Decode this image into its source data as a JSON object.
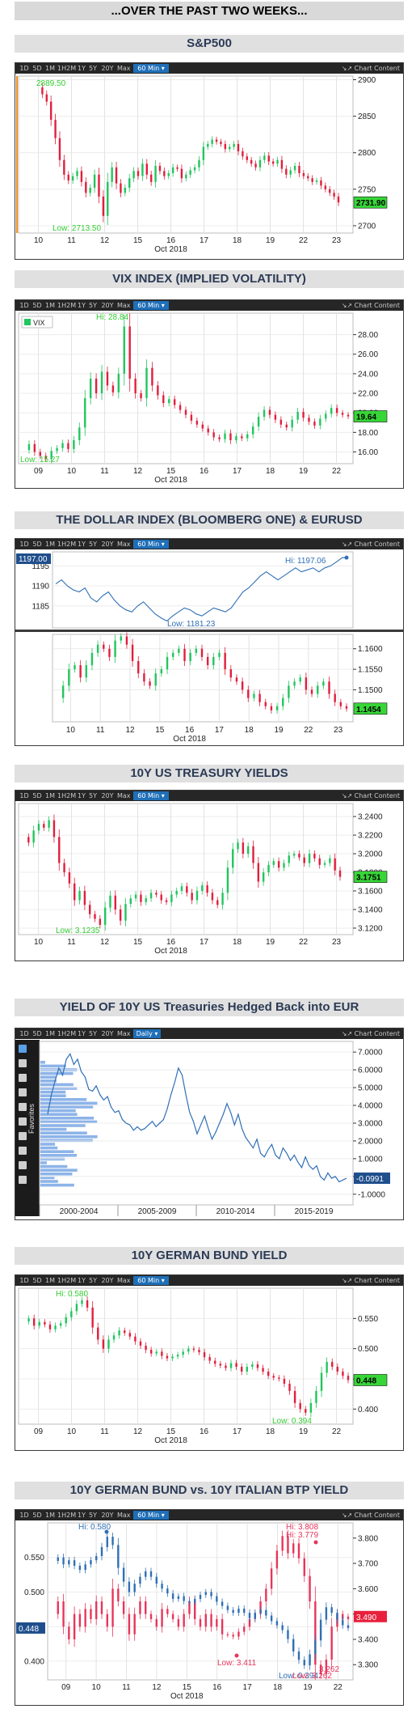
{
  "page_title": "...OVER THE PAST TWO WEEKS...",
  "toolbar": {
    "intraday_buttons": [
      "1D",
      "5D",
      "1M",
      "1H2M",
      "1Y",
      "5Y",
      "20Y",
      "Max"
    ],
    "interval": "60 Min ▾",
    "daily_interval": "Daily ▾",
    "chart_content": "Chart Content"
  },
  "charts": [
    {
      "title": "S&P500",
      "chart_data": {
        "type": "line",
        "series": [
          {
            "values": [
              2889.5,
              2880,
              2870,
              2845,
              2820,
              2790,
              2770,
              2762,
              2768,
              2775,
              2760,
              2745,
              2752,
              2770,
              2740,
              2713.5,
              2760,
              2780,
              2758,
              2745,
              2752,
              2765,
              2775,
              2768,
              2785,
              2770,
              2760,
              2782,
              2775,
              2768,
              2772,
              2780,
              2778,
              2765,
              2770,
              2776,
              2780,
              2790,
              2808,
              2812,
              2818,
              2815,
              2812,
              2805,
              2808,
              2812,
              2802,
              2795,
              2790,
              2785,
              2780,
              2790,
              2796,
              2788,
              2785,
              2790,
              2778,
              2770,
              2776,
              2782,
              2772,
              2768,
              2765,
              2760,
              2762,
              2755,
              2750,
              2745,
              2740,
              2731.9
            ]
          }
        ],
        "x_tick_labels": [
          "10",
          "11",
          "12",
          "15",
          "16",
          "17",
          "18",
          "19",
          "22",
          "23"
        ],
        "x_axis_label": "Oct 2018",
        "ylim": [
          2690,
          2905
        ],
        "y_ticks": [
          2700,
          2750,
          2800,
          2850,
          2900
        ],
        "annotations": {
          "high": "2889.50",
          "low": "Low: 2713.50",
          "last": "2731.90"
        }
      }
    },
    {
      "title": "VIX INDEX (IMPLIED VOLATILITY)",
      "chart_data": {
        "type": "line",
        "legend": [
          "VIX"
        ],
        "series": [
          {
            "name": "VIX",
            "values": [
              16.2,
              16.8,
              16.0,
              15.6,
              15.27,
              16.1,
              16.4,
              16.9,
              16.3,
              17.2,
              18.5,
              21.5,
              23.5,
              22.0,
              24.2,
              22.8,
              22.1,
              24.0,
              28.84,
              23.5,
              22.0,
              21.5,
              24.6,
              22.8,
              21.8,
              21.0,
              21.4,
              20.8,
              20.3,
              19.8,
              19.2,
              18.8,
              18.4,
              18.0,
              17.5,
              17.3,
              17.9,
              17.2,
              17.6,
              17.4,
              17.8,
              18.6,
              19.6,
              20.3,
              19.8,
              19.3,
              18.8,
              18.5,
              19.3,
              20.1,
              19.5,
              19.1,
              18.7,
              19.4,
              19.9,
              20.5,
              20.0,
              19.8,
              19.64
            ]
          }
        ],
        "x_tick_labels": [
          "09",
          "10",
          "11",
          "12",
          "15",
          "16",
          "17",
          "18",
          "19",
          "22"
        ],
        "x_axis_label": "Oct 2018",
        "ylim": [
          14.8,
          30.2
        ],
        "y_ticks": [
          16,
          18,
          20,
          22,
          24,
          26,
          28
        ],
        "annotations": {
          "high": "Hi: 28.84",
          "low": "Low: 15.27",
          "last": "19.64"
        }
      }
    },
    {
      "title": "THE DOLLAR INDEX (BLOOMBERG ONE) & EURUSD",
      "chart_data": [
        {
          "type": "line",
          "series": [
            {
              "values": [
                1190.5,
                1191.5,
                1190,
                1189,
                1188.5,
                1189.5,
                1187,
                1186,
                1187.5,
                1188.5,
                1186.5,
                1185,
                1184,
                1183.5,
                1185,
                1186,
                1184.5,
                1183,
                1182,
                1181.23,
                1182.5,
                1183.5,
                1184.5,
                1184,
                1183,
                1182.5,
                1183.5,
                1184.5,
                1184,
                1183.5,
                1184.5,
                1186.5,
                1188.5,
                1189.5,
                1191,
                1192.5,
                1193.5,
                1192.5,
                1191.5,
                1192.5,
                1193.5,
                1194.5,
                1193.5,
                1194,
                1194.5,
                1193.5,
                1194.5,
                1195,
                1196,
                1197.06,
                1197
              ]
            }
          ],
          "ylim": [
            1179.5,
            1198.5
          ],
          "y_ticks": [
            1185,
            1190,
            1195
          ],
          "annotations": {
            "high": "Hi: 1197.06",
            "low": "Low: 1181.23",
            "last": "1197.00"
          }
        },
        {
          "type": "line",
          "series": [
            {
              "values": [
                1.148,
                1.151,
                1.155,
                1.156,
                1.153,
                1.156,
                1.159,
                1.161,
                1.16,
                1.158,
                1.162,
                1.163,
                1.161,
                1.157,
                1.154,
                1.152,
                1.151,
                1.154,
                1.155,
                1.158,
                1.159,
                1.16,
                1.157,
                1.159,
                1.16,
                1.158,
                1.156,
                1.158,
                1.159,
                1.155,
                1.153,
                1.152,
                1.15,
                1.148,
                1.149,
                1.147,
                1.146,
                1.145,
                1.146,
                1.148,
                1.151,
                1.152,
                1.153,
                1.15,
                1.149,
                1.151,
                1.152,
                1.149,
                1.147,
                1.146,
                1.1454
              ]
            }
          ],
          "x_tick_labels": [
            "10",
            "11",
            "12",
            "15",
            "16",
            "17",
            "18",
            "19",
            "22",
            "23"
          ],
          "x_axis_label": "Oct 2018",
          "ylim": [
            1.1422,
            1.1635
          ],
          "y_ticks": [
            1.15,
            1.155,
            1.16
          ],
          "y_tick_labels": [
            "1.1500",
            "1.1550",
            "1.1600"
          ],
          "annotations": {
            "last": "1.1454"
          }
        }
      ]
    },
    {
      "title": "10Y US TREASURY YIELDS",
      "chart_data": {
        "type": "line",
        "series": [
          {
            "values": [
              3.218,
              3.212,
              3.225,
              3.232,
              3.228,
              3.236,
              3.218,
              3.19,
              3.18,
              3.168,
              3.15,
              3.16,
              3.145,
              3.135,
              3.13,
              3.1235,
              3.142,
              3.155,
              3.14,
              3.128,
              3.146,
              3.152,
              3.156,
              3.148,
              3.152,
              3.158,
              3.156,
              3.15,
              3.148,
              3.156,
              3.16,
              3.165,
              3.158,
              3.15,
              3.16,
              3.166,
              3.158,
              3.15,
              3.145,
              3.158,
              3.185,
              3.205,
              3.212,
              3.2,
              3.208,
              3.19,
              3.17,
              3.18,
              3.188,
              3.192,
              3.185,
              3.19,
              3.198,
              3.2,
              3.196,
              3.19,
              3.2,
              3.195,
              3.188,
              3.19,
              3.195,
              3.182,
              3.1751
            ]
          }
        ],
        "x_tick_labels": [
          "10",
          "11",
          "12",
          "15",
          "16",
          "17",
          "18",
          "19",
          "22",
          "23"
        ],
        "x_axis_label": "Oct 2018",
        "ylim": [
          3.113,
          3.254
        ],
        "y_ticks": [
          3.12,
          3.14,
          3.16,
          3.18,
          3.2,
          3.22,
          3.24
        ],
        "y_tick_labels": [
          "3.1200",
          "3.1400",
          "3.1600",
          "3.1800",
          "3.2000",
          "3.2200",
          "3.2400"
        ],
        "annotations": {
          "low": "Low: 3.1235",
          "last": "3.1751"
        }
      }
    },
    {
      "title": "YIELD OF 10Y US Treasuries Hedged Back into EUR",
      "chart_data": {
        "type": "line",
        "series": [
          {
            "values": [
              3.5,
              4.6,
              5.4,
              6.1,
              5.7,
              6.6,
              6.9,
              6.3,
              6.6,
              5.9,
              5.6,
              4.9,
              4.8,
              5.1,
              4.6,
              4.3,
              4.5,
              3.9,
              3.6,
              3.7,
              3.2,
              3.0,
              2.9,
              2.6,
              2.8,
              2.6,
              2.7,
              2.9,
              3.1,
              2.8,
              3.0,
              3.2,
              3.8,
              4.6,
              5.3,
              6.1,
              5.7,
              4.6,
              3.6,
              3.1,
              2.4,
              2.9,
              3.4,
              2.7,
              2.1,
              2.5,
              3.0,
              3.5,
              4.1,
              3.6,
              2.9,
              3.5,
              2.7,
              2.2,
              1.9,
              1.6,
              2.1,
              1.3,
              1.1,
              1.5,
              1.8,
              1.2,
              1.0,
              1.6,
              1.3,
              0.9,
              1.2,
              0.8,
              0.5,
              1.1,
              0.6,
              0.4,
              0.6,
              0.0,
              -0.2,
              0.2,
              -0.1,
              0.0,
              -0.3,
              -0.2,
              -0.0991
            ]
          }
        ],
        "x_tick_labels": [
          "2000-2004",
          "2005-2009",
          "2010-2014",
          "2015-2019"
        ],
        "ylim": [
          -1.6,
          7.6
        ],
        "y_ticks": [
          -1,
          0,
          1,
          2,
          3,
          4,
          5,
          6,
          7
        ],
        "y_tick_labels": [
          "-1.0000",
          "",
          "1.0000",
          "2.0000",
          "3.0000",
          "4.0000",
          "5.0000",
          "6.0000",
          "7.0000"
        ],
        "side_label": "Favorites",
        "annotations": {
          "last": "-0.0991"
        }
      }
    },
    {
      "title": "10Y GERMAN BUND YIELD",
      "chart_data": {
        "type": "line",
        "series": [
          {
            "values": [
              0.545,
              0.55,
              0.538,
              0.544,
              0.54,
              0.532,
              0.538,
              0.542,
              0.552,
              0.562,
              0.574,
              0.58,
              0.568,
              0.535,
              0.515,
              0.5,
              0.515,
              0.522,
              0.53,
              0.526,
              0.52,
              0.512,
              0.505,
              0.498,
              0.492,
              0.495,
              0.488,
              0.484,
              0.487,
              0.49,
              0.495,
              0.5,
              0.498,
              0.494,
              0.486,
              0.48,
              0.475,
              0.472,
              0.468,
              0.476,
              0.47,
              0.462,
              0.47,
              0.474,
              0.468,
              0.462,
              0.455,
              0.452,
              0.45,
              0.442,
              0.43,
              0.41,
              0.4,
              0.394,
              0.41,
              0.43,
              0.46,
              0.478,
              0.47,
              0.462,
              0.455,
              0.448
            ]
          }
        ],
        "x_tick_labels": [
          "09",
          "10",
          "11",
          "12",
          "15",
          "16",
          "17",
          "18",
          "19",
          "22"
        ],
        "x_axis_label": "Oct 2018",
        "ylim": [
          0.375,
          0.6
        ],
        "y_ticks": [
          0.4,
          0.45,
          0.5,
          0.55
        ],
        "y_tick_labels": [
          "0.400",
          "0.450",
          "0.500",
          "0.550"
        ],
        "annotations": {
          "high": "Hi: 0.580",
          "low": "Low: 0.394",
          "last": "0.448"
        }
      }
    },
    {
      "title": "10Y GERMAN BUND vs. 10Y ITALIAN BTP YIELD",
      "chart_data": {
        "type": "line",
        "series": [
          {
            "values": [
              0.545,
              0.55,
              0.54,
              0.546,
              0.538,
              0.532,
              0.54,
              0.546,
              0.552,
              0.565,
              0.58,
              0.568,
              0.535,
              0.515,
              0.5,
              0.512,
              0.522,
              0.53,
              0.522,
              0.512,
              0.505,
              0.498,
              0.49,
              0.494,
              0.487,
              0.485,
              0.49,
              0.496,
              0.5,
              0.494,
              0.486,
              0.48,
              0.474,
              0.47,
              0.476,
              0.47,
              0.462,
              0.47,
              0.474,
              0.466,
              0.458,
              0.452,
              0.445,
              0.432,
              0.414,
              0.402,
              0.394,
              0.41,
              0.43,
              0.46,
              0.478,
              0.47,
              0.46,
              0.452,
              0.448
            ]
          },
          {
            "values": [
              3.5,
              3.55,
              3.45,
              3.4,
              3.5,
              3.45,
              3.52,
              3.48,
              3.55,
              3.5,
              3.45,
              3.6,
              3.55,
              3.5,
              3.42,
              3.5,
              3.55,
              3.5,
              3.48,
              3.45,
              3.52,
              3.5,
              3.48,
              3.45,
              3.5,
              3.55,
              3.48,
              3.45,
              3.5,
              3.45,
              3.48,
              3.42,
              3.418,
              3.411,
              3.43,
              3.45,
              3.48,
              3.5,
              3.55,
              3.6,
              3.68,
              3.75,
              3.808,
              3.74,
              3.779,
              3.72,
              3.65,
              3.55,
              3.3,
              3.262,
              3.32,
              3.45,
              3.5,
              3.48,
              3.49
            ]
          }
        ],
        "x_tick_labels": [
          "09",
          "10",
          "11",
          "12",
          "15",
          "16",
          "17",
          "18",
          "19",
          "22"
        ],
        "x_axis_label": "Oct 2018",
        "ylim_left": [
          0.373,
          0.6
        ],
        "ylim_right": [
          3.24,
          3.86
        ],
        "y_ticks_left": [
          0.4,
          0.45,
          0.5,
          0.55
        ],
        "y_tick_labels_left": [
          "0.400",
          "0.450",
          "0.500",
          "0.550"
        ],
        "y_ticks_right": [
          3.3,
          3.4,
          3.5,
          3.6,
          3.7,
          3.8
        ],
        "y_tick_labels_right": [
          "3.300",
          "3.400",
          "3.500",
          "3.600",
          "3.700",
          "3.800"
        ],
        "annotations": {
          "bund_high": "Hi: 0.580",
          "bund_low": "Low: 0.394",
          "bund_last": "0.448",
          "btp_high1": "Hi: 3.808",
          "btp_high2": "Hi: 3.779",
          "btp_low1": "Low: 3.411",
          "btp_low2": "Low: 3.262",
          "btp_low3": "3.262",
          "btp_last": "3.490"
        }
      }
    }
  ],
  "colors": {
    "up": "#22c55e",
    "down": "#e01f3d",
    "blue": "#2f6fb5",
    "btp": "#e8355a",
    "green_label": "#33cc33"
  }
}
